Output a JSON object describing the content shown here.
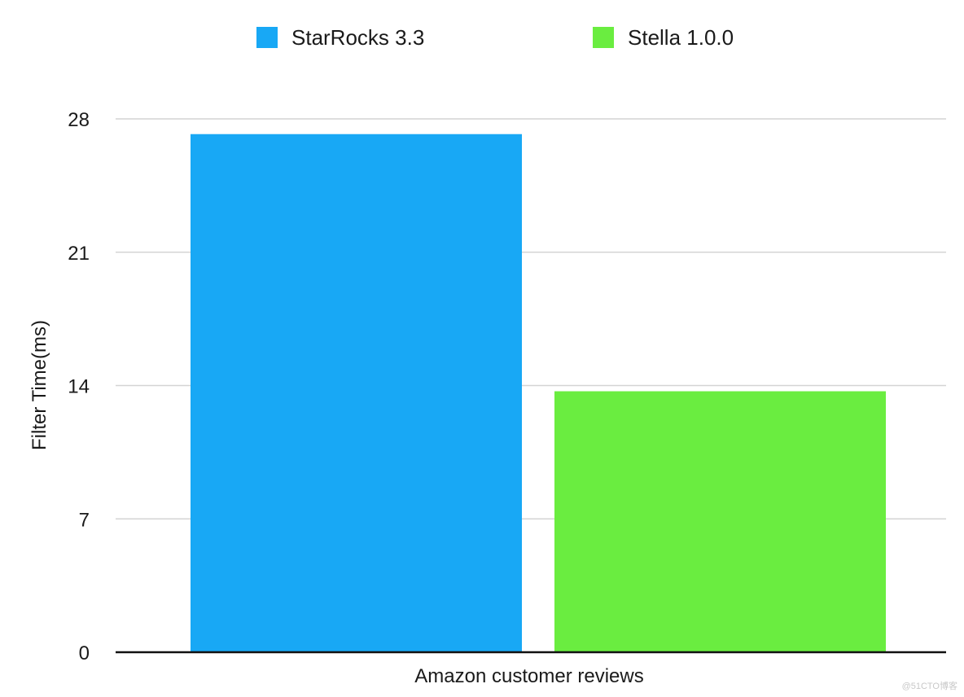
{
  "watermark": "@51CTO博客",
  "chart_data": {
    "type": "bar",
    "title": "",
    "xlabel": "",
    "ylabel": "Filter Time(ms)",
    "categories": [
      "Amazon customer reviews"
    ],
    "ylim": [
      0,
      28
    ],
    "yticks": [
      0,
      7,
      14,
      21,
      28
    ],
    "grid": true,
    "legend_position": "top",
    "series": [
      {
        "name": "StarRocks 3.3",
        "color": "#18a8f5",
        "values": [
          27.2
        ]
      },
      {
        "name": "Stella 1.0.0",
        "color": "#6aed40",
        "values": [
          13.7
        ]
      }
    ]
  }
}
